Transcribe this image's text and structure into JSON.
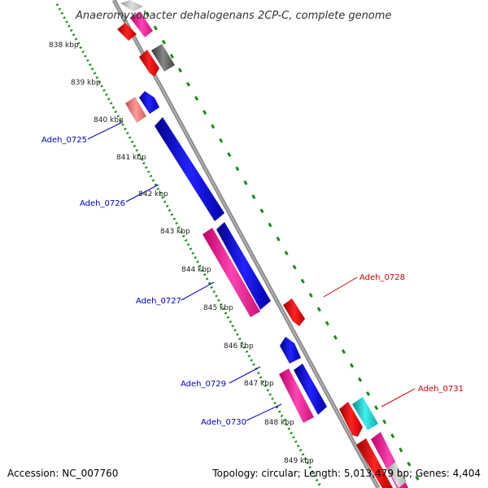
{
  "map": {
    "title": "Anaeromyxobacter dehalogenans 2CP-C, complete genome",
    "footer": {
      "accession": "Accession: NC_007760",
      "topology": "Topology: circular; Length: 5,013,479 bp; Genes: 4,404"
    },
    "kbp_ticks": [
      {
        "label": "838 kbp",
        "kbp": 838
      },
      {
        "label": "839 kbp",
        "kbp": 839
      },
      {
        "label": "840 kbp",
        "kbp": 840
      },
      {
        "label": "841 kbp",
        "kbp": 841
      },
      {
        "label": "842 kbp",
        "kbp": 842
      },
      {
        "label": "843 kbp",
        "kbp": 843
      },
      {
        "label": "844 kbp",
        "kbp": 844
      },
      {
        "label": "845 kbp",
        "kbp": 845
      },
      {
        "label": "846 kbp",
        "kbp": 846
      },
      {
        "label": "847 kbp",
        "kbp": 847
      },
      {
        "label": "848 kbp",
        "kbp": 848
      },
      {
        "label": "849 kbp",
        "kbp": 849
      }
    ],
    "labeled_genes": [
      {
        "name": "Adeh_0725",
        "color": "#0000cc"
      },
      {
        "name": "Adeh_0726",
        "color": "#0000cc"
      },
      {
        "name": "Adeh_0727",
        "color": "#0000cc"
      },
      {
        "name": "Adeh_0728",
        "color": "#cc0000"
      },
      {
        "name": "Adeh_0729",
        "color": "#0000cc"
      },
      {
        "name": "Adeh_0730",
        "color": "#0000cc"
      },
      {
        "name": "Adeh_0731",
        "color": "#cc0000"
      }
    ],
    "colors": {
      "backbone": "#8c8c8c",
      "ruler_dots": "#1a8a1a",
      "gene_blue": "#0000dd",
      "gene_red": "#ee0000",
      "gene_pink": "#ff1a9a",
      "gene_lightred": "#f08080",
      "gene_gray": "#666666",
      "gene_cyan": "#1ccfcf"
    }
  }
}
